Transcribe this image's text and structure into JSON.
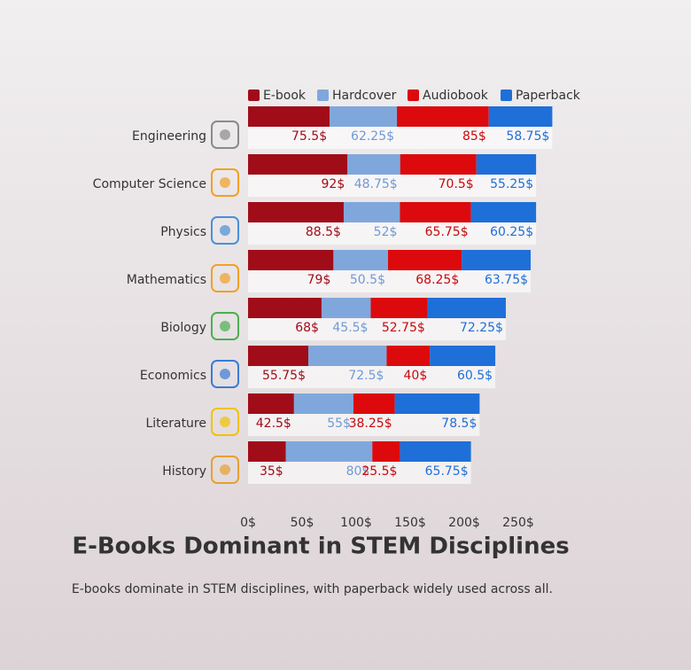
{
  "chart_data": {
    "type": "stacked-bar-horizontal",
    "title": "E-Books Dominant in STEM Disciplines",
    "subtitle": "E-books dominate in STEM disciplines, with paperback widely used across all.",
    "categories": [
      "Engineering",
      "Computer Science",
      "Physics",
      "Mathematics",
      "Biology",
      "Economics",
      "Literature",
      "History"
    ],
    "series": [
      {
        "name": "E-book",
        "color": "#a00d18",
        "label_color": "#a00d18",
        "values": [
          75.5,
          92,
          88.5,
          79,
          68,
          55.75,
          42.5,
          35
        ],
        "value_labels": [
          "75.5$",
          "92$",
          "88.5$",
          "79$",
          "68$",
          "55.75$",
          "42.5$",
          "35$"
        ]
      },
      {
        "name": "Hardcover",
        "color": "#80a7dc",
        "label_color": "#6f9ad6",
        "values": [
          62.25,
          48.75,
          52,
          50.5,
          45.5,
          72.5,
          55,
          80
        ],
        "value_labels": [
          "62.25$",
          "48.75$",
          "52$",
          "50.5$",
          "45.5$",
          "72.5$",
          "55$",
          "80$"
        ]
      },
      {
        "name": "Audiobook",
        "color": "#dc0a0c",
        "label_color": "#c8080c",
        "values": [
          85,
          70.5,
          65.75,
          68.25,
          52.75,
          40,
          38.25,
          25.5
        ],
        "value_labels": [
          "85$",
          "70.5$",
          "65.75$",
          "68.25$",
          "52.75$",
          "40$",
          "38.25$",
          "25.5$"
        ]
      },
      {
        "name": "Paperback",
        "color": "#1f6fd8",
        "label_color": "#1f6fd8",
        "values": [
          58.75,
          55.25,
          60.25,
          63.75,
          72.25,
          60.5,
          78.5,
          65.75
        ],
        "value_labels": [
          "58.75$",
          "55.25$",
          "60.25$",
          "63.75$",
          "72.25$",
          "60.5$",
          "78.5$",
          "65.75$"
        ]
      }
    ],
    "xlim": [
      0,
      290
    ],
    "xticks": [
      {
        "value": 0,
        "label": "0$"
      },
      {
        "value": 50,
        "label": "50$"
      },
      {
        "value": 100,
        "label": "100$"
      },
      {
        "value": 150,
        "label": "150$"
      },
      {
        "value": 200,
        "label": "200$"
      },
      {
        "value": 250,
        "label": "250$"
      }
    ],
    "legend": "top"
  }
}
